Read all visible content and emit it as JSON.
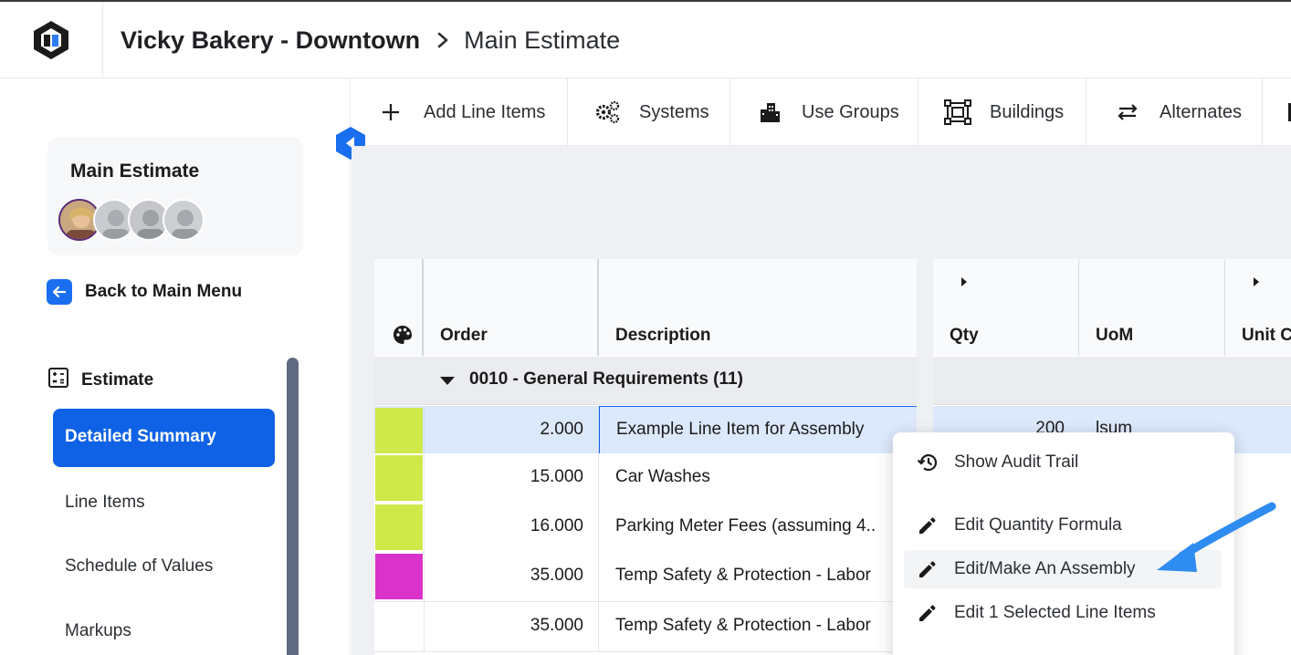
{
  "header": {
    "project": "Vicky Bakery - Downtown",
    "page": "Main Estimate"
  },
  "sidebar": {
    "card_title": "Main Estimate",
    "back_label": "Back to Main Menu",
    "section_title": "Estimate",
    "items": [
      {
        "label": "Detailed Summary",
        "active": true
      },
      {
        "label": "Line Items"
      },
      {
        "label": "Schedule of Values"
      },
      {
        "label": "Markups"
      }
    ]
  },
  "toolbar": {
    "items": [
      {
        "label": "Add Line Items",
        "icon": "plus-icon"
      },
      {
        "label": "Systems",
        "icon": "gears-icon"
      },
      {
        "label": "Use Groups",
        "icon": "buildings-icon"
      },
      {
        "label": "Buildings",
        "icon": "building-frame-icon"
      },
      {
        "label": "Alternates",
        "icon": "swap-arrows-icon"
      }
    ]
  },
  "grid": {
    "columns": {
      "color": "palette-icon",
      "order": "Order",
      "description": "Description",
      "qty": "Qty",
      "uom": "UoM",
      "unit_cost": "Unit C"
    },
    "group": "0010 - General Requirements (11)",
    "rows": [
      {
        "order": "2.000",
        "description": "Example Line Item for Assembly",
        "color": "#cfe84a",
        "qty": "200",
        "uom": "lsum",
        "selected": true
      },
      {
        "order": "15.000",
        "description": "Car Washes",
        "color": "#cfe84a"
      },
      {
        "order": "16.000",
        "description": "Parking Meter Fees (assuming 4..",
        "color": "#cfe84a"
      },
      {
        "order": "35.000",
        "description": "Temp Safety & Protection - Labor",
        "color": "#d933cc"
      },
      {
        "order": "35.000",
        "description": "Temp Safety & Protection - Labor",
        "color": "#ffffff"
      }
    ]
  },
  "context_menu": {
    "items": [
      {
        "label": "Show Audit Trail",
        "icon": "history-icon"
      },
      {
        "label": "Edit Quantity Formula",
        "icon": "pencil-icon"
      },
      {
        "label": "Edit/Make An Assembly",
        "icon": "pencil-icon",
        "hover": true
      },
      {
        "label": "Edit 1 Selected Line Items",
        "icon": "pencil-icon"
      }
    ]
  },
  "colors": {
    "accent": "#0f62e6",
    "pointer_arrow": "#2f8cf0"
  }
}
